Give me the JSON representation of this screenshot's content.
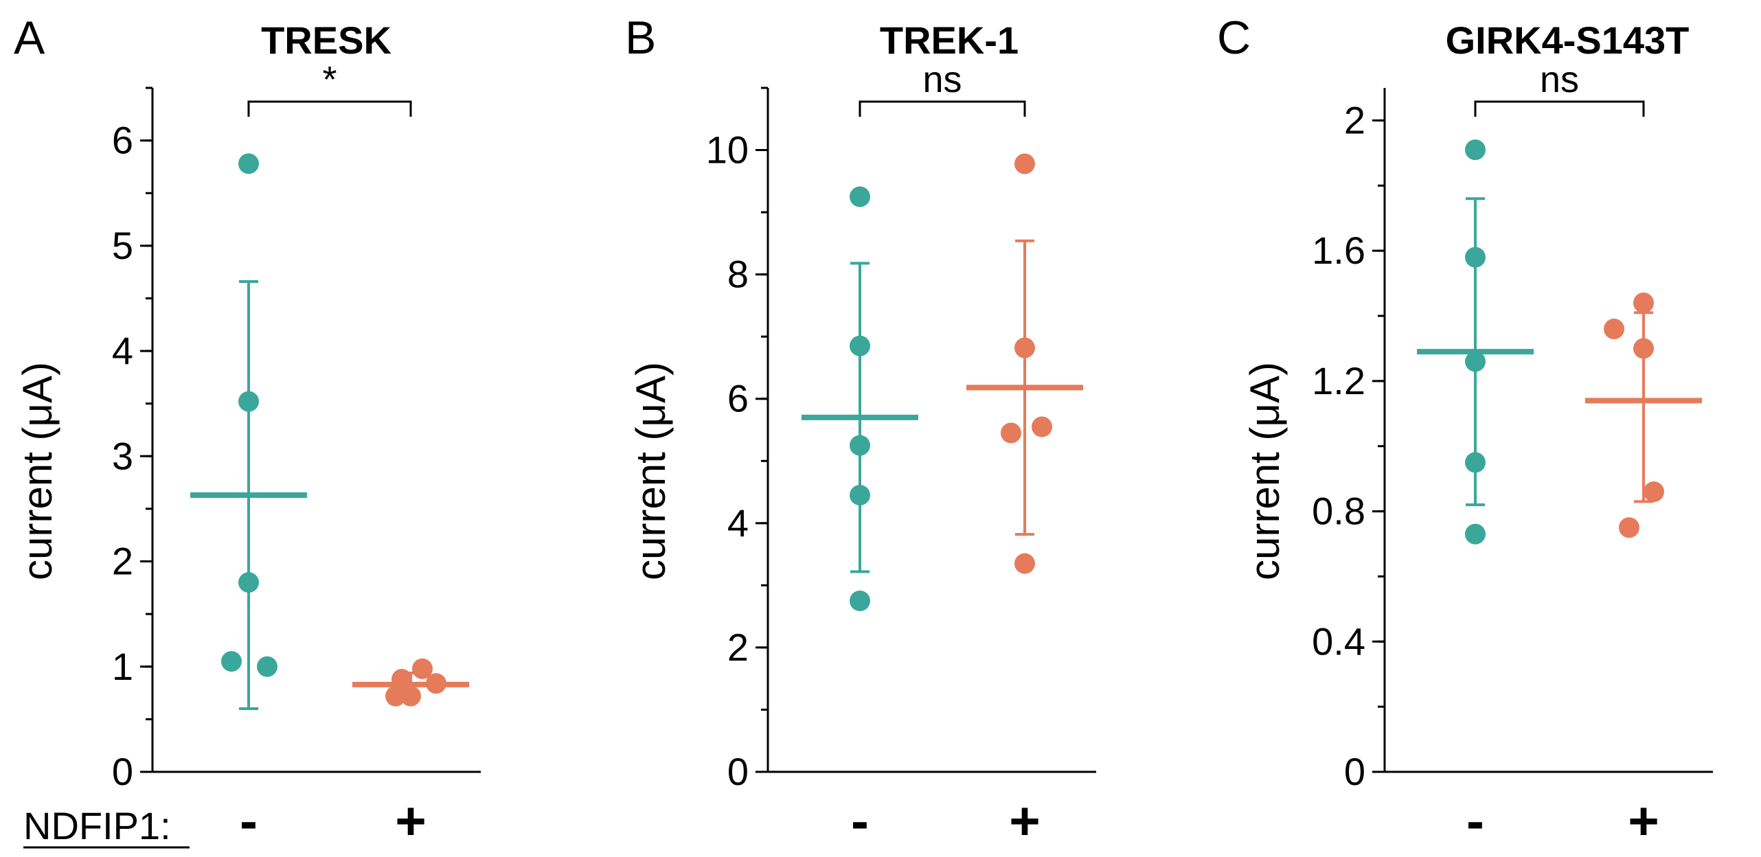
{
  "row_label": "NDFIP1:",
  "colors": {
    "minus": "#3aa79a",
    "plus": "#e57b5b",
    "axis": "#000000"
  },
  "chart_data": [
    {
      "type": "scatter",
      "panel_letter": "A",
      "title": "TRESK",
      "ylabel": "current (μA)",
      "xlabel": "",
      "ylim": [
        0,
        6.5
      ],
      "yticks": [
        0,
        1,
        2,
        3,
        4,
        5,
        6
      ],
      "ytick_labels": [
        "0",
        "1",
        "2",
        "3",
        "4",
        "5",
        "6"
      ],
      "minor_step": 0.5,
      "categories": [
        "-",
        "+"
      ],
      "series": [
        {
          "name": "-",
          "points": [
            5.78,
            3.52,
            1.8,
            1.05,
            1.0
          ],
          "mean": 2.63,
          "sd_low": 0.6,
          "sd_high": 4.66
        },
        {
          "name": "+",
          "points": [
            0.98,
            0.88,
            0.84,
            0.72,
            0.72
          ],
          "mean": 0.83,
          "sd_low": 0.72,
          "sd_high": 0.94
        }
      ],
      "significance": "*"
    },
    {
      "type": "scatter",
      "panel_letter": "B",
      "title": "TREK-1",
      "ylabel": "current (μA)",
      "xlabel": "",
      "ylim": [
        0,
        11
      ],
      "yticks": [
        0,
        2,
        4,
        6,
        8,
        10
      ],
      "ytick_labels": [
        "0",
        "2",
        "4",
        "6",
        "8",
        "10"
      ],
      "minor_step": 1,
      "categories": [
        "-",
        "+"
      ],
      "series": [
        {
          "name": "-",
          "points": [
            9.25,
            6.85,
            5.25,
            4.45,
            2.75
          ],
          "mean": 5.7,
          "sd_low": 3.22,
          "sd_high": 8.18
        },
        {
          "name": "+",
          "points": [
            9.78,
            6.82,
            5.55,
            5.45,
            3.35
          ],
          "mean": 6.18,
          "sd_low": 3.82,
          "sd_high": 8.54
        }
      ],
      "significance": "ns"
    },
    {
      "type": "scatter",
      "panel_letter": "C",
      "title": "GIRK4-S143T",
      "ylabel": "current (μA)",
      "xlabel": "",
      "ylim": [
        0,
        2.1
      ],
      "yticks": [
        0,
        0.4,
        0.8,
        1.2,
        1.6,
        2.0
      ],
      "ytick_labels": [
        "0",
        "0.4",
        "0.8",
        "1.2",
        "1.6",
        "2"
      ],
      "minor_step": 0.2,
      "categories": [
        "-",
        "+"
      ],
      "series": [
        {
          "name": "-",
          "points": [
            1.91,
            1.58,
            1.26,
            0.95,
            0.73
          ],
          "mean": 1.29,
          "sd_low": 0.82,
          "sd_high": 1.76
        },
        {
          "name": "+",
          "points": [
            1.44,
            1.36,
            1.3,
            0.86,
            0.75
          ],
          "mean": 1.14,
          "sd_low": 0.83,
          "sd_high": 1.41
        }
      ],
      "significance": "ns"
    }
  ]
}
